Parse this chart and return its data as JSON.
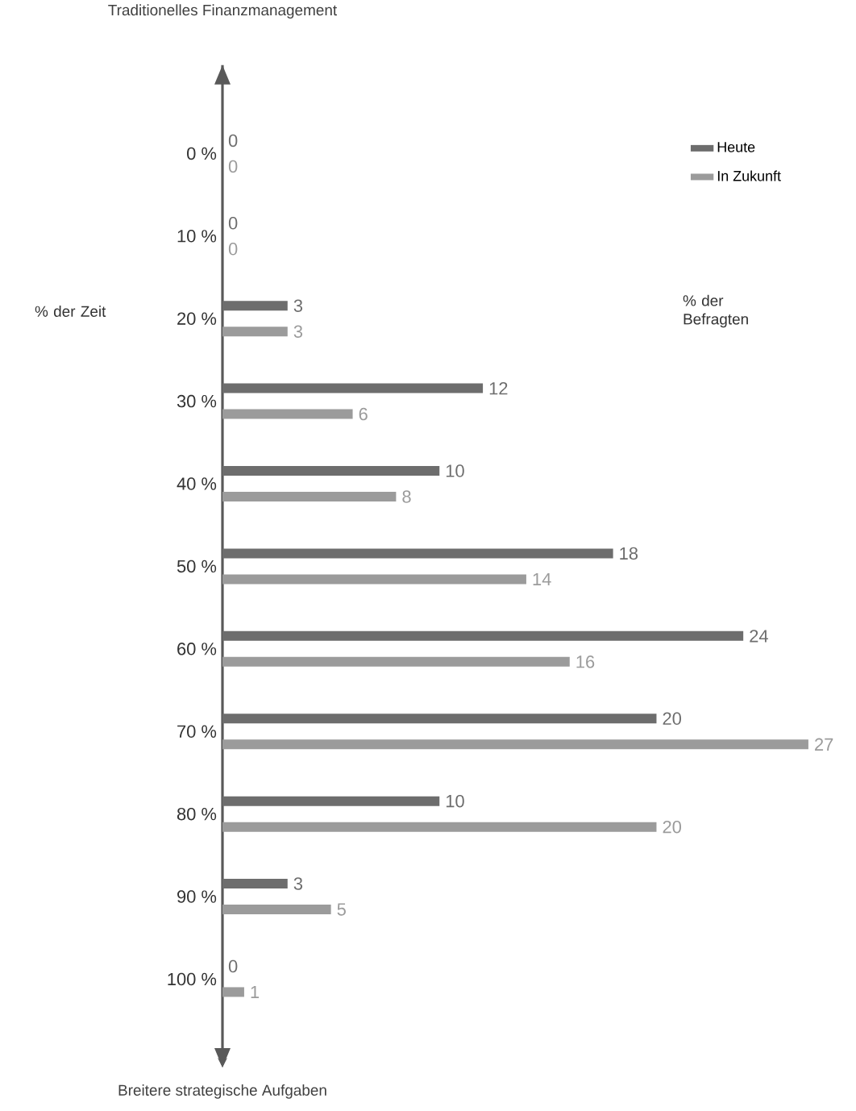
{
  "chart_data": {
    "type": "bar",
    "orientation": "horizontal",
    "title": "Traditionelles Finanzmanagement",
    "ylabel": "% der Zeit",
    "xlabel": "% der Befragten",
    "categories": [
      "0 %",
      "10 %",
      "20 %",
      "30 %",
      "40 %",
      "50 %",
      "60 %",
      "70 %",
      "80 %",
      "90 %",
      "100 %"
    ],
    "series": [
      {
        "name": "Heute",
        "color": "#6d6d6d",
        "values": [
          0,
          0,
          3,
          12,
          10,
          18,
          24,
          20,
          10,
          3,
          0
        ]
      },
      {
        "name": "In Zukunft",
        "color": "#9b9b9b",
        "values": [
          0,
          0,
          3,
          6,
          8,
          14,
          16,
          27,
          20,
          5,
          1
        ]
      }
    ],
    "data_labels": true,
    "legend": "top right",
    "annotations": [
      "Breitere strategische Aufgaben"
    ]
  }
}
